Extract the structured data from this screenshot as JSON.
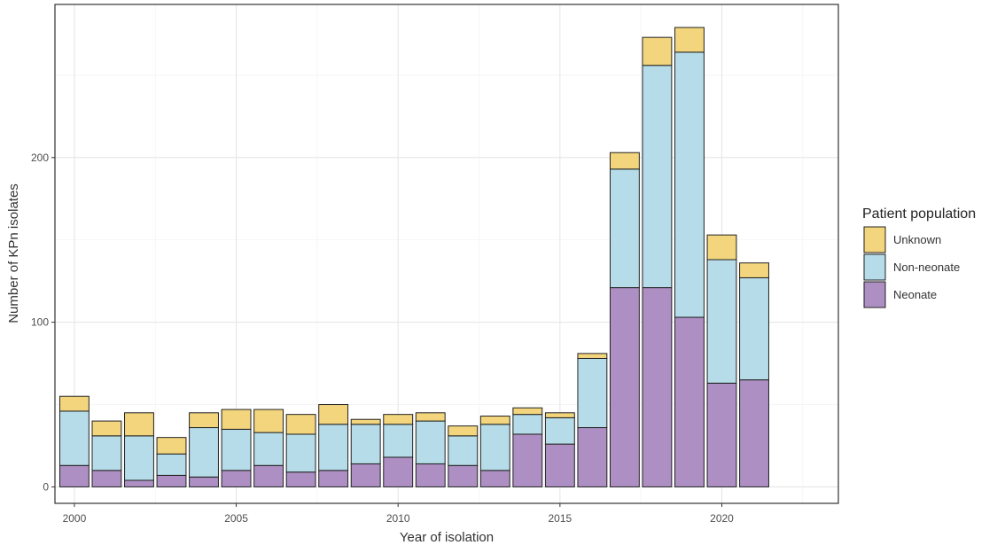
{
  "chart_data": {
    "type": "bar",
    "stacked": true,
    "xlabel": "Year of isolation",
    "ylabel": "Number of KPn isolates",
    "x": [
      2000,
      2001,
      2002,
      2003,
      2004,
      2005,
      2006,
      2007,
      2008,
      2009,
      2010,
      2011,
      2012,
      2013,
      2014,
      2015,
      2016,
      2017,
      2018,
      2019,
      2020,
      2021
    ],
    "xticks": [
      2000,
      2005,
      2010,
      2015,
      2020
    ],
    "yticks": [
      0,
      100,
      200
    ],
    "xlim": [
      1999.4,
      2023.6
    ],
    "ylim": [
      -10,
      293
    ],
    "grid": true,
    "legend_title": "Patient population",
    "legend_position": "right",
    "series": [
      {
        "name": "Neonate",
        "color": "#ad8fc3",
        "values": [
          13,
          10,
          4,
          7,
          6,
          10,
          13,
          9,
          10,
          14,
          18,
          14,
          13,
          10,
          32,
          26,
          36,
          121,
          121,
          103,
          63,
          65
        ]
      },
      {
        "name": "Non-neonate",
        "color": "#b5dce8",
        "values": [
          33,
          21,
          27,
          13,
          30,
          25,
          20,
          23,
          28,
          24,
          20,
          26,
          18,
          28,
          12,
          16,
          42,
          72,
          135,
          161,
          75,
          62
        ]
      },
      {
        "name": "Unknown",
        "color": "#f2d57d",
        "values": [
          9,
          9,
          14,
          10,
          9,
          12,
          14,
          12,
          12,
          3,
          6,
          5,
          6,
          5,
          4,
          3,
          3,
          10,
          17,
          15,
          15,
          9
        ]
      }
    ],
    "legend_order": [
      "Unknown",
      "Non-neonate",
      "Neonate"
    ]
  }
}
